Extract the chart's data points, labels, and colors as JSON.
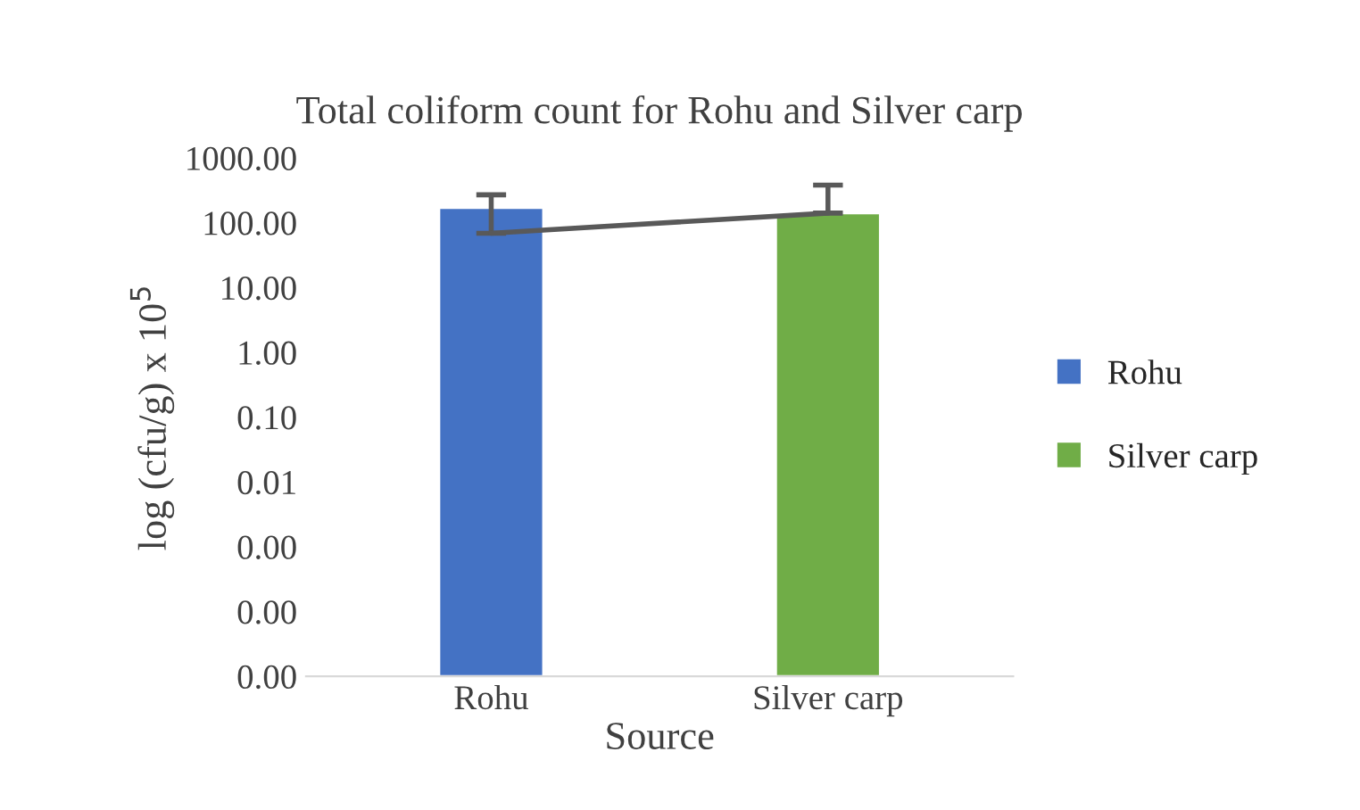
{
  "chart_data": {
    "type": "bar",
    "title": "Total coliform count for Rohu and Silver carp",
    "xlabel": "Source",
    "ylabel": "log (cfu/g) x 10$^{5}$",
    "categories": [
      "Rohu",
      "Silver carp"
    ],
    "series": [
      {
        "name": "Rohu",
        "color": "#4472c4",
        "values": [
          171,
          null
        ],
        "errors": [
          [
            69,
            270
          ],
          null
        ]
      },
      {
        "name": "Silver carp",
        "color": "#70ad47",
        "values": [
          null,
          141
        ],
        "errors": [
          null,
          [
            141,
            380
          ]
        ]
      },
      {
        "type": "line",
        "color": "#595959",
        "values": [
          69,
          141
        ],
        "marker": "none",
        "line_style": "solid"
      }
    ],
    "log": "y",
    "ylim": [
      1e-05,
      1000
    ],
    "yticks": [
      {
        "value": 1e-05,
        "label": "0.00"
      },
      {
        "value": 0.0001,
        "label": "0.00"
      },
      {
        "value": 0.001,
        "label": "0.00"
      },
      {
        "value": 0.01,
        "label": "0.01"
      },
      {
        "value": 0.1,
        "label": "0.10"
      },
      {
        "value": 1,
        "label": "1.00"
      },
      {
        "value": 10,
        "label": "10.00"
      },
      {
        "value": 100,
        "label": "100.00"
      },
      {
        "value": 1000,
        "label": "1000.00"
      }
    ],
    "grid": false,
    "legend": "right"
  }
}
